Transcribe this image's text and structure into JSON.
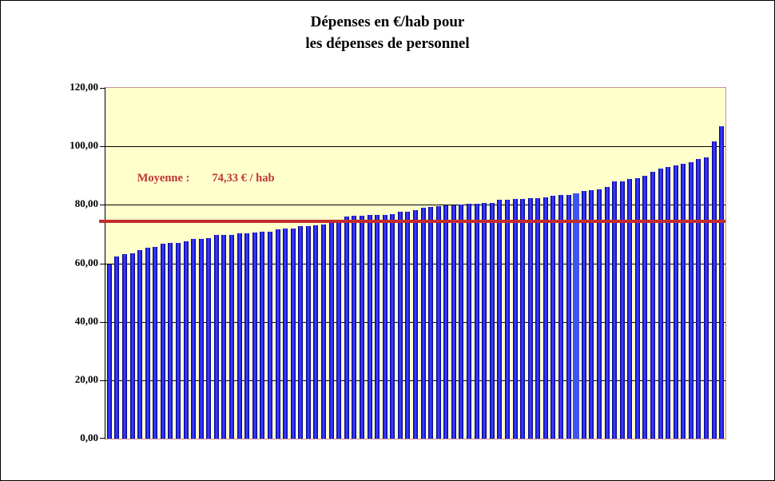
{
  "title": {
    "line1": "Dépenses en €/hab pour",
    "line2": "les dépenses de personnel"
  },
  "annotation": {
    "label": "Moyenne :",
    "value": "74,33 € / hab"
  },
  "colors": {
    "plot_background": "#FFFFCC",
    "bar_fill": "#2222EE",
    "bar_edge": "#00006E",
    "bar_highlight": "#3D55F2",
    "mean_line": "#C22D2D",
    "annotation_text": "#C03434",
    "plot_border": "#C49494",
    "gridline": "#000000"
  },
  "chart_data": {
    "type": "bar",
    "title": "Dépenses en €/hab pour les dépenses de personnel",
    "xlabel": "",
    "ylabel": "€/hab",
    "ylim": [
      0,
      120
    ],
    "yticks": [
      0,
      20,
      40,
      60,
      80,
      100,
      120
    ],
    "ytick_labels": [
      "0,00",
      "20,00",
      "40,00",
      "60,00",
      "80,00",
      "100,00",
      "120,00"
    ],
    "grid": "horizontal-black-every-20",
    "legend": "none",
    "mean": 74.33,
    "mean_label": "Moyenne :  74,33 € / hab",
    "highlight_index": 61,
    "values": [
      59.6,
      62.3,
      63.2,
      63.4,
      64.6,
      65.2,
      65.6,
      66.8,
      67.0,
      67.0,
      67.4,
      68.3,
      68.3,
      68.6,
      69.7,
      69.8,
      69.8,
      70.3,
      70.3,
      70.5,
      70.9,
      70.9,
      71.6,
      71.8,
      71.8,
      72.7,
      72.7,
      73.0,
      73.2,
      74.3,
      74.3,
      75.9,
      76.3,
      76.3,
      76.5,
      76.5,
      76.6,
      76.8,
      77.6,
      77.7,
      78.3,
      78.9,
      79.4,
      79.6,
      79.7,
      79.9,
      80.1,
      80.3,
      80.5,
      80.7,
      80.7,
      81.7,
      81.8,
      82.1,
      82.1,
      82.3,
      82.4,
      82.5,
      83.2,
      83.5,
      83.5,
      84.0,
      84.7,
      84.9,
      85.3,
      86.0,
      87.9,
      88.0,
      88.8,
      89.0,
      90.0,
      91.3,
      92.4,
      93.0,
      93.5,
      94.0,
      94.6,
      95.7,
      96.1,
      101.8,
      106.9
    ]
  }
}
